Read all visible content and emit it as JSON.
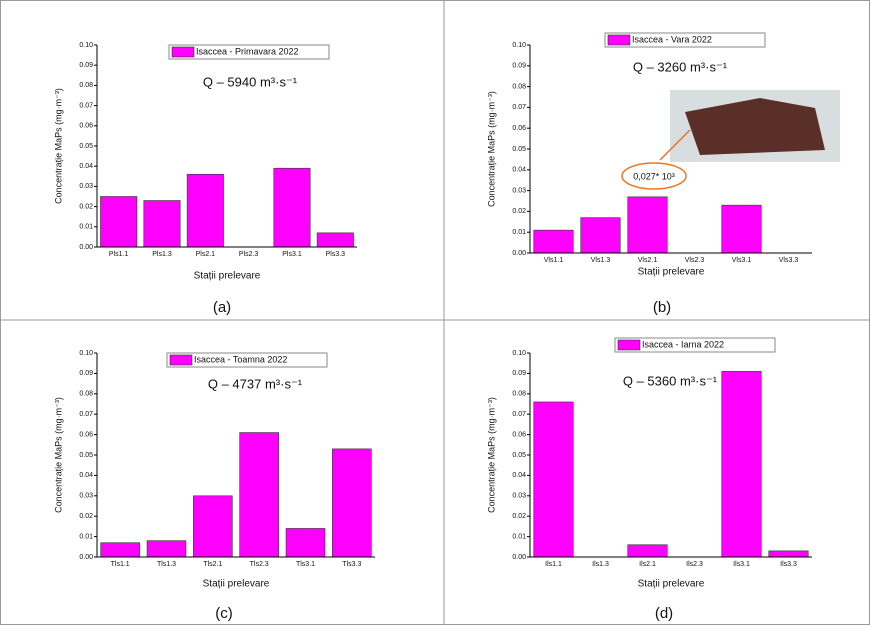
{
  "chart_data": [
    {
      "type": "bar",
      "panel_label": "(a)",
      "annotation": "Q – 5940 m³·s⁻¹",
      "y_label": "Concentrație MaPs (mg·m⁻³)",
      "x_label": "Stații prelevare",
      "categories": [
        "Pls1.1",
        "Pls1.3",
        "Pls2.1",
        "Pls2.3",
        "Pls3.1",
        "Pls3.3"
      ],
      "series": [
        {
          "name": "Isaccea - Primavara 2022",
          "color": "#ff00ff",
          "values": [
            0.025,
            0.023,
            0.036,
            0,
            0.039,
            0.007
          ]
        }
      ],
      "ylim": [
        0,
        0.1
      ],
      "yticks": [
        {
          "value": 0,
          "label": "0.00"
        },
        {
          "value": 0.01,
          "label": "0.01"
        },
        {
          "value": 0.02,
          "label": "0.02"
        },
        {
          "value": 0.03,
          "label": "0.03"
        },
        {
          "value": 0.04,
          "label": "0.04"
        },
        {
          "value": 0.05,
          "label": "0.05"
        },
        {
          "value": 0.06,
          "label": "0.06"
        },
        {
          "value": 0.07,
          "label": "0.07"
        },
        {
          "value": 0.08,
          "label": "0.08"
        },
        {
          "value": 0.09,
          "label": "0.09"
        },
        {
          "value": 0.1,
          "label": "0.10"
        }
      ]
    },
    {
      "type": "bar",
      "panel_label": "(b)",
      "annotation": "Q – 3260 m³·s⁻¹",
      "callout": "0,027* 10³",
      "y_label": "Concentrație MaPs (mg·m⁻³)",
      "x_label": "Stații prelevare",
      "categories": [
        "Vls1.1",
        "Vls1.3",
        "Vls2.1",
        "Vls2.3",
        "Vls3.1",
        "Vls3.3"
      ],
      "series": [
        {
          "name": "Isaccea - Vara 2022",
          "color": "#ff00ff",
          "values": [
            0.011,
            0.017,
            0.027,
            0,
            0.023,
            0
          ]
        }
      ],
      "ylim": [
        0,
        0.1
      ],
      "yticks": [
        {
          "value": 0,
          "label": "0.00"
        },
        {
          "value": 0.01,
          "label": "0.01"
        },
        {
          "value": 0.02,
          "label": "0.02"
        },
        {
          "value": 0.03,
          "label": "0.03"
        },
        {
          "value": 0.04,
          "label": "0.04"
        },
        {
          "value": 0.05,
          "label": "0.05"
        },
        {
          "value": 0.06,
          "label": "0.06"
        },
        {
          "value": 0.07,
          "label": "0.07"
        },
        {
          "value": 0.08,
          "label": "0.08"
        },
        {
          "value": 0.09,
          "label": "0.09"
        },
        {
          "value": 0.1,
          "label": "0.10"
        }
      ]
    },
    {
      "type": "bar",
      "panel_label": "(c)",
      "annotation": "Q – 4737 m³·s⁻¹",
      "y_label": "Concentrație MaPs (mg·m⁻³)",
      "x_label": "Stații prelevare",
      "categories": [
        "Tls1.1",
        "Tls1.3",
        "Tls2.1",
        "Tls2.3",
        "Tls3.1",
        "Tls3.3"
      ],
      "series": [
        {
          "name": "Isaccea - Toamna 2022",
          "color": "#ff00ff",
          "values": [
            0.007,
            0.008,
            0.03,
            0.061,
            0.014,
            0.053
          ]
        }
      ],
      "ylim": [
        0,
        0.1
      ],
      "yticks": [
        {
          "value": 0,
          "label": "0.00"
        },
        {
          "value": 0.01,
          "label": "0.01"
        },
        {
          "value": 0.02,
          "label": "0.02"
        },
        {
          "value": 0.03,
          "label": "0.03"
        },
        {
          "value": 0.04,
          "label": "0.04"
        },
        {
          "value": 0.05,
          "label": "0.05"
        },
        {
          "value": 0.06,
          "label": "0.06"
        },
        {
          "value": 0.07,
          "label": "0.07"
        },
        {
          "value": 0.08,
          "label": "0.08"
        },
        {
          "value": 0.09,
          "label": "0.09"
        },
        {
          "value": 0.1,
          "label": "0.10"
        }
      ]
    },
    {
      "type": "bar",
      "panel_label": "(d)",
      "annotation": "Q – 5360 m³·s⁻¹",
      "y_label": "Concentrație MaPs (mg·m⁻³)",
      "x_label": "Stații prelevare",
      "categories": [
        "Ils1.1",
        "Ils1.3",
        "Ils2.1",
        "Ils2.3",
        "Ils3.1",
        "Ils3.3"
      ],
      "series": [
        {
          "name": "Isaccea - Iarna 2022",
          "color": "#ff00ff",
          "values": [
            0.076,
            0,
            0.006,
            0,
            0.091,
            0.003
          ]
        }
      ],
      "ylim": [
        0,
        0.1
      ],
      "yticks": [
        {
          "value": 0,
          "label": "0.00"
        },
        {
          "value": 0.01,
          "label": "0.01"
        },
        {
          "value": 0.02,
          "label": "0.02"
        },
        {
          "value": 0.03,
          "label": "0.03"
        },
        {
          "value": 0.04,
          "label": "0.04"
        },
        {
          "value": 0.05,
          "label": "0.05"
        },
        {
          "value": 0.06,
          "label": "0.06"
        },
        {
          "value": 0.07,
          "label": "0.07"
        },
        {
          "value": 0.08,
          "label": "0.08"
        },
        {
          "value": 0.09,
          "label": "0.09"
        },
        {
          "value": 0.1,
          "label": "0.10"
        }
      ]
    }
  ]
}
